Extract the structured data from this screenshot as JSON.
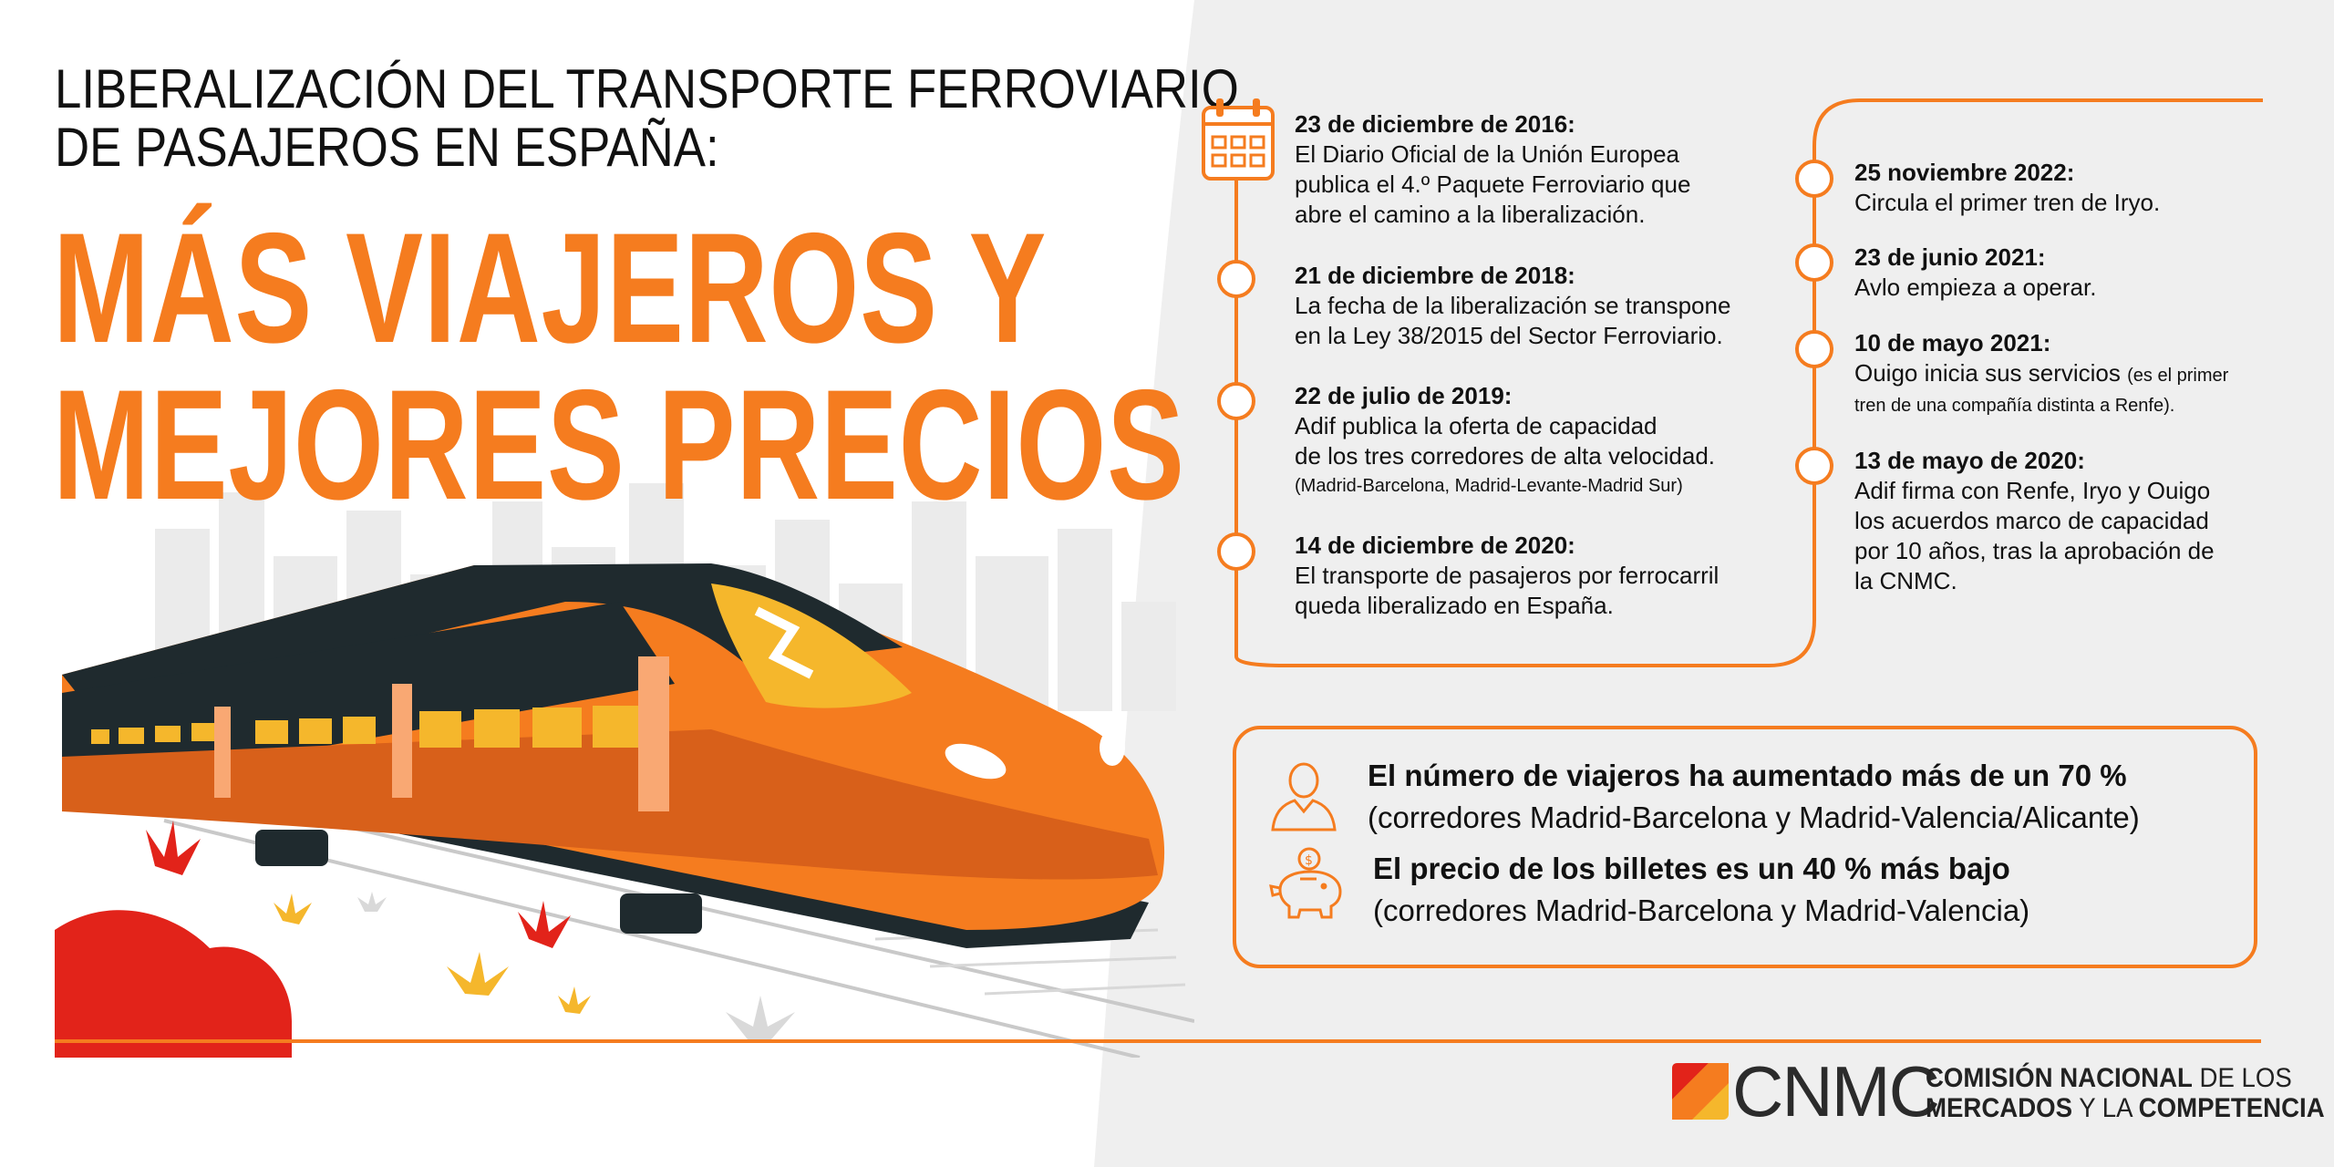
{
  "header": {
    "pre_title_line1": "LIBERALIZACIÓN DEL TRANSPORTE FERROVIARIO",
    "pre_title_line2": "DE PASAJEROS EN ESPAÑA:",
    "title_line1": "MÁS VIAJEROS Y",
    "title_line2": "MEJORES PRECIOS"
  },
  "timeline_left": [
    {
      "date": "23 de diciembre de 2016:",
      "lines": [
        "El Diario Oficial de la Unión Europea",
        "publica el 4.º Paquete Ferroviario que",
        "abre el camino a la liberalización."
      ]
    },
    {
      "date": "21 de diciembre de 2018:",
      "lines": [
        "La fecha de la liberalización se transpone",
        "en la Ley 38/2015 del Sector Ferroviario."
      ]
    },
    {
      "date": "22 de julio de 2019:",
      "lines": [
        "Adif publica la oferta de capacidad",
        "de los tres corredores de alta velocidad."
      ],
      "note": "(Madrid-Barcelona, Madrid-Levante-Madrid Sur)"
    },
    {
      "date": "14 de diciembre de 2020:",
      "lines": [
        "El transporte de pasajeros por ferrocarril",
        "queda liberalizado en España."
      ]
    }
  ],
  "timeline_right": [
    {
      "date": "25 noviembre 2022:",
      "lines": [
        "Circula el primer tren de Iryo."
      ]
    },
    {
      "date": "23 de junio 2021:",
      "lines": [
        "Avlo empieza a operar."
      ]
    },
    {
      "date": "10 de mayo 2021:",
      "line1": "Ouigo inicia sus servicios",
      "line1_note": "(es el primer",
      "line2_note": "tren de una compañía distinta a Renfe)."
    },
    {
      "date": "13 de mayo de 2020:",
      "lines": [
        "Adif firma con Renfe, Iryo y Ouigo",
        "los acuerdos marco de capacidad",
        "por 10 años, tras la aprobación de",
        "la CNMC."
      ]
    }
  ],
  "stats": [
    {
      "strong": "El número de viajeros ha aumentado más de un 70 %",
      "detail": "(corredores Madrid-Barcelona y Madrid-Valencia/Alicante)",
      "icon": "person-icon"
    },
    {
      "strong": "El precio de los billetes es un 40 % más bajo",
      "detail": "(corredores Madrid-Barcelona y Madrid-Valencia)",
      "icon": "piggy-bank-icon"
    }
  ],
  "footer": {
    "logo_word": "CNMC",
    "line1_bold": "COMISIÓN NACIONAL",
    "line1_rest": "DE LOS",
    "line2_bold": "MERCADOS",
    "line2_mid": "Y LA",
    "line2_end": "COMPETENCIA"
  },
  "colors": {
    "accent": "#f57c1f",
    "red": "#e2231a",
    "yellow": "#f5b72c",
    "dark": "#1f2a2e",
    "panel": "#efefef"
  }
}
